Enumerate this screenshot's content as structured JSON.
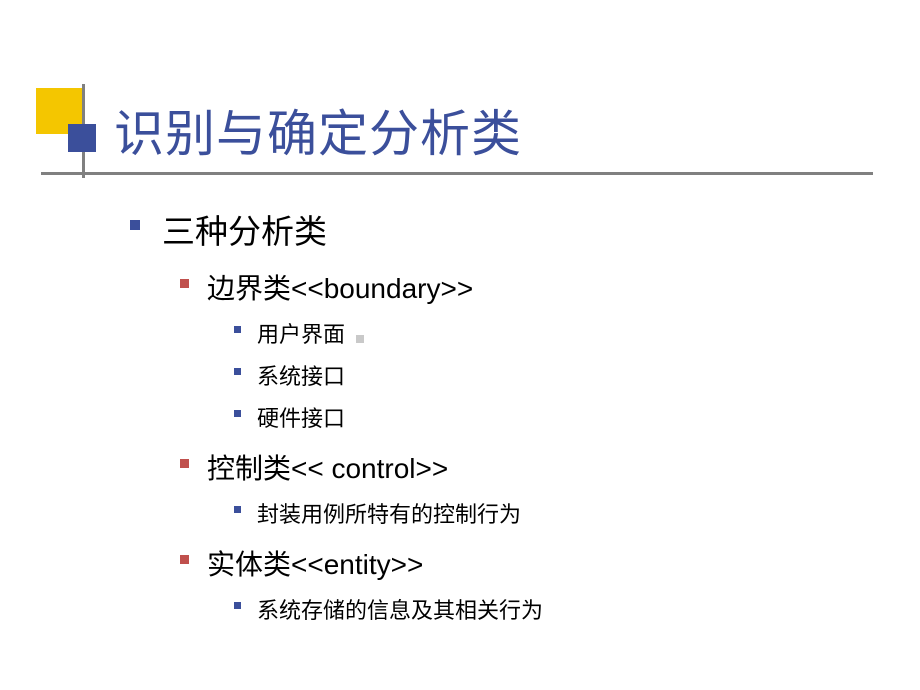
{
  "theme": {
    "accent_yellow": "#f4c600",
    "accent_blue": "#3b4f9b",
    "accent_red": "#c0504d",
    "rule_gray": "#808080",
    "background": "#ffffff",
    "title_color": "#3b4f9b",
    "body_color": "#000000",
    "title_fontsize": 50,
    "lvl1_fontsize": 33,
    "lvl2_fontsize": 28,
    "lvl3_fontsize": 22
  },
  "title": "识别与确定分析类",
  "outline": {
    "lvl1": "三种分析类",
    "groups": [
      {
        "label": "边界类<<boundary>>",
        "items": [
          "用户界面",
          "系统接口",
          "硬件接口"
        ]
      },
      {
        "label": "控制类<< control>>",
        "items": [
          "封装用例所特有的控制行为"
        ]
      },
      {
        "label": "实体类<<entity>>",
        "items": [
          "系统存储的信息及其相关行为"
        ]
      }
    ]
  }
}
